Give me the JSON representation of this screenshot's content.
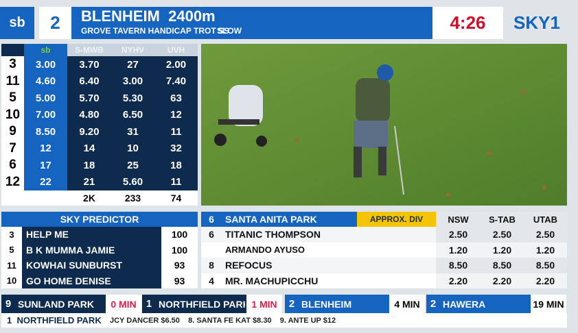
{
  "header": {
    "logo": "sb",
    "race_number": "2",
    "title": "BLENHEIM  2400m",
    "subtitle": "GROVE TAVERN HANDICAP TROT SS",
    "condition": "SLOW",
    "clock": "4:26",
    "channel": "SKY1"
  },
  "odds": {
    "columns": [
      "sb",
      "S-MWB",
      "NYHV",
      "UVH"
    ],
    "rows": [
      [
        "3",
        "3.00",
        "3.70",
        "27",
        "2.00"
      ],
      [
        "11",
        "4.60",
        "6.40",
        "3.00",
        "7.40"
      ],
      [
        "5",
        "5.00",
        "5.70",
        "5.30",
        "63"
      ],
      [
        "10",
        "7.00",
        "4.80",
        "6.50",
        "12"
      ],
      [
        "9",
        "8.50",
        "9.20",
        "31",
        "11"
      ],
      [
        "7",
        "12",
        "14",
        "10",
        "32"
      ],
      [
        "6",
        "17",
        "18",
        "25",
        "18"
      ],
      [
        "12",
        "22",
        "21",
        "5.60",
        "11"
      ]
    ],
    "totals": [
      "2K",
      "233",
      "74"
    ]
  },
  "predictor": {
    "title": "SKY PREDICTOR",
    "rows": [
      [
        "3",
        "HELP ME",
        "100"
      ],
      [
        "5",
        "B K MUMMA JAMIE",
        "100"
      ],
      [
        "11",
        "KOWHAI SUNBURST",
        "93"
      ],
      [
        "10",
        "GO HOME DENISE",
        "93"
      ]
    ]
  },
  "race_panel": {
    "number": "6",
    "venue": "SANTA ANITA PARK",
    "label": "APPROX. DIV",
    "columns": [
      "NSW",
      "S-TAB",
      "UTAB"
    ],
    "rows": [
      {
        "number": "6",
        "name": "TITANIC THOMPSON",
        "divs": [
          "2.50",
          "2.50",
          "2.50"
        ]
      },
      {
        "name": "ARMANDO AYUSO",
        "divs": [
          "1.20",
          "1.20",
          "1.20"
        ]
      },
      {
        "number": "8",
        "name": "REFOCUS",
        "divs": [
          "8.50",
          "8.50",
          "8.50"
        ]
      },
      {
        "number": "4",
        "name": "MR. MACHUPICCHU",
        "divs": [
          "2.20",
          "2.20",
          "2.20"
        ]
      }
    ]
  },
  "next_races": [
    {
      "number": "9",
      "venue": "SUNLAND PARK",
      "time": "0 MIN"
    },
    {
      "number": "1",
      "venue": "NORTHFIELD PARK",
      "time": "1 MIN"
    },
    {
      "number": "2",
      "venue": "BLENHEIM",
      "time": "4 MIN"
    },
    {
      "number": "2",
      "venue": "HAWERA",
      "time": "19 MIN"
    }
  ],
  "ticker": {
    "current": "1  NORTHFIELD PARK",
    "text": "JCY DANCER $6.50    8. SANTA FE KAT $8.30    9. ANTE UP $12"
  }
}
